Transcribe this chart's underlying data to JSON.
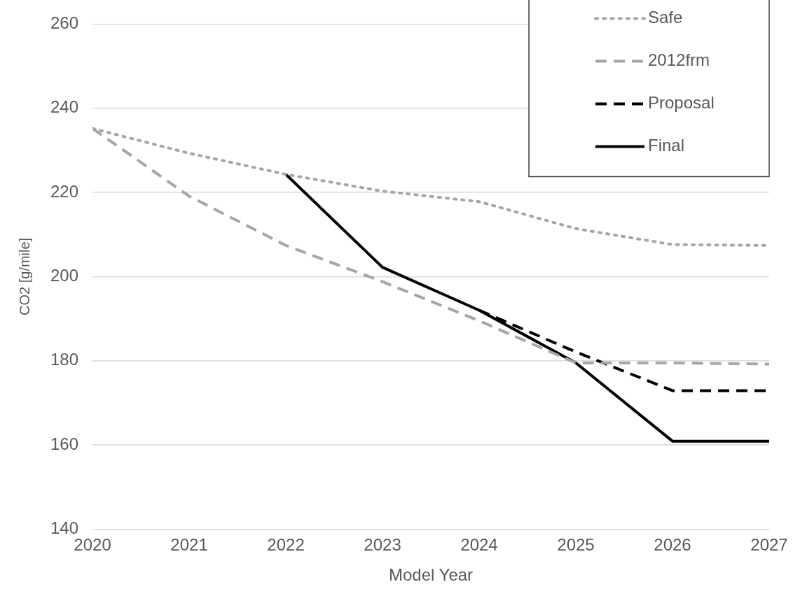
{
  "chart_data": {
    "type": "line",
    "xlabel": "Model Year",
    "ylabel": "CO2 [g/mile]",
    "x": [
      2020,
      2021,
      2022,
      2023,
      2024,
      2025,
      2026,
      2027
    ],
    "xlim": [
      2020,
      2027
    ],
    "xticks": [
      2020,
      2021,
      2022,
      2023,
      2024,
      2025,
      2026,
      2027
    ],
    "ylim": [
      140,
      260
    ],
    "yticks": [
      140,
      160,
      180,
      200,
      220,
      240,
      260
    ],
    "grid": "y",
    "legend": "top right",
    "marker": "none",
    "series": [
      {
        "name": "Safe",
        "color": "#a6a6a6",
        "line_style": "dotted",
        "values": [
          235.2,
          229.3,
          224.3,
          220.3,
          217.8,
          211.4,
          207.6,
          207.4
        ]
      },
      {
        "name": "2012frm",
        "color": "#a6a6a6",
        "line_style": "dashed",
        "values": [
          235.2,
          219.1,
          207.4,
          198.8,
          189.5,
          179.5,
          179.5,
          179.2
        ]
      },
      {
        "name": "Proposal",
        "color": "#000000",
        "line_style": "dashed",
        "values": [
          null,
          null,
          null,
          null,
          192,
          182.1,
          172.9,
          172.9
        ]
      },
      {
        "name": "Final",
        "color": "#000000",
        "line_style": "solid",
        "values": [
          null,
          null,
          224.3,
          202.2,
          192,
          179.5,
          160.9,
          160.9
        ]
      }
    ]
  }
}
